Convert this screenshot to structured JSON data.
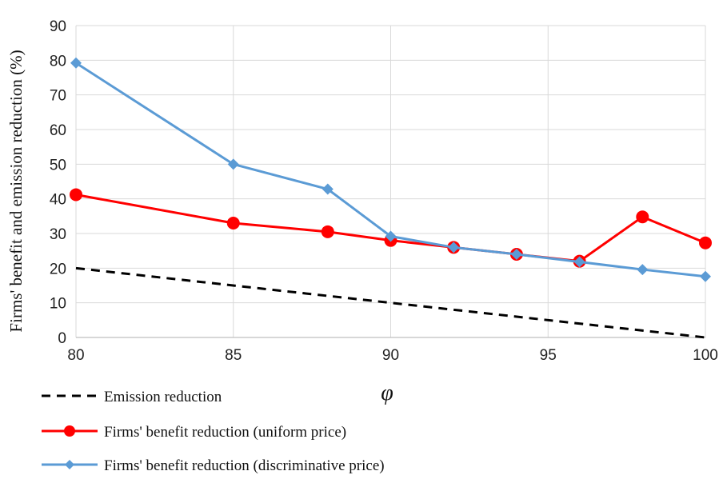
{
  "chart_data": {
    "type": "line",
    "xlabel": "φ",
    "ylabel": "Firms'  benefit and emission reduction (%)",
    "xlim": [
      80,
      100
    ],
    "ylim": [
      0,
      90
    ],
    "xticks": [
      80,
      85,
      90,
      95,
      100
    ],
    "yticks": [
      0,
      10,
      20,
      30,
      40,
      50,
      60,
      70,
      80,
      90
    ],
    "grid": true,
    "legend_position": "bottom-left",
    "series": [
      {
        "name": "Emission reduction",
        "color": "#000000",
        "style": "dashed",
        "marker": "none",
        "x": [
          80,
          100
        ],
        "y": [
          20,
          0
        ]
      },
      {
        "name": "Firms' benefit reduction (uniform price)",
        "color": "#ff0000",
        "style": "solid",
        "marker": "circle",
        "x": [
          80,
          85,
          88,
          90,
          92,
          94,
          96,
          98,
          100
        ],
        "y": [
          41.2,
          33,
          30.5,
          28,
          26,
          24,
          22,
          34.8,
          27.3
        ]
      },
      {
        "name": "Firms' benefit reduction (discriminative price)",
        "color": "#5b9bd5",
        "style": "solid",
        "marker": "diamond",
        "x": [
          80,
          85,
          88,
          90,
          92,
          94,
          96,
          98,
          100
        ],
        "y": [
          79.2,
          50,
          42.8,
          29.2,
          26,
          24,
          21.8,
          19.6,
          17.6
        ]
      }
    ]
  }
}
